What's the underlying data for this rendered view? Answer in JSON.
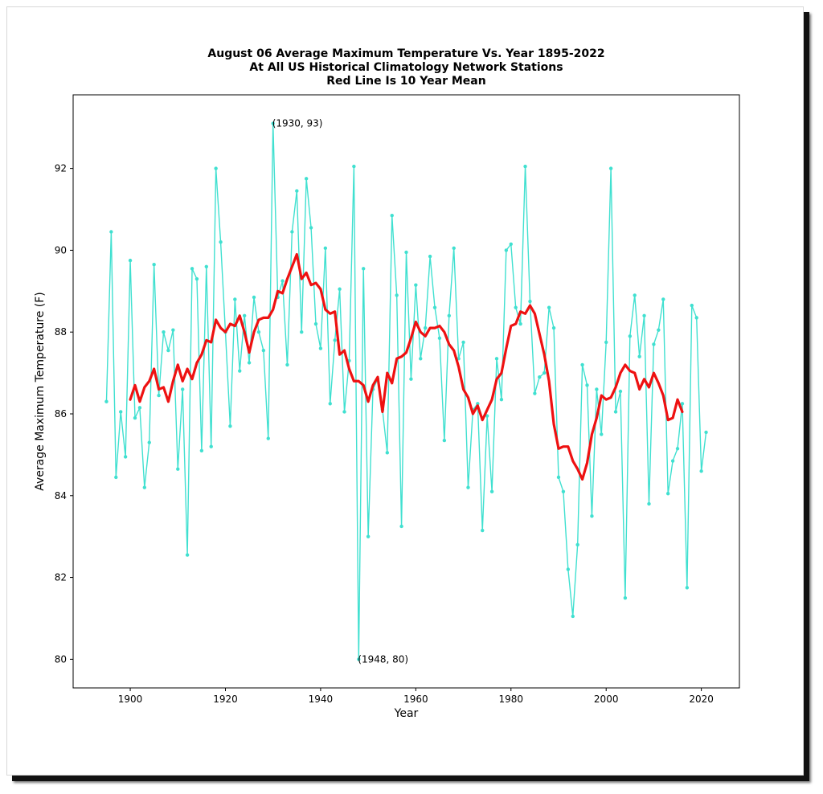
{
  "chart_data": {
    "type": "line",
    "title": [
      "August 06 Average Maximum Temperature Vs. Year 1895-2022",
      "At All US Historical Climatology Network Stations",
      "Red Line Is 10 Year Mean"
    ],
    "xlabel": "Year",
    "ylabel": "Average Maximum Temperature (F)",
    "xlim": [
      1888,
      2028
    ],
    "ylim": [
      79.3,
      93.8
    ],
    "xticks": [
      1900,
      1920,
      1940,
      1960,
      1980,
      2000,
      2020
    ],
    "yticks": [
      80,
      82,
      84,
      86,
      88,
      90,
      92
    ],
    "grid": false,
    "series": [
      {
        "color": "#40E0D0",
        "x": [
          1895,
          1896,
          1897,
          1898,
          1899,
          1900,
          1901,
          1902,
          1903,
          1904,
          1905,
          1906,
          1907,
          1908,
          1909,
          1910,
          1911,
          1912,
          1913,
          1914,
          1915,
          1916,
          1917,
          1918,
          1919,
          1920,
          1921,
          1922,
          1923,
          1924,
          1925,
          1926,
          1927,
          1928,
          1929,
          1930,
          1931,
          1932,
          1933,
          1934,
          1935,
          1936,
          1937,
          1938,
          1939,
          1940,
          1941,
          1942,
          1943,
          1944,
          1945,
          1946,
          1947,
          1948,
          1949,
          1950,
          1951,
          1952,
          1953,
          1954,
          1955,
          1956,
          1957,
          1958,
          1959,
          1960,
          1961,
          1962,
          1963,
          1964,
          1965,
          1966,
          1967,
          1968,
          1969,
          1970,
          1971,
          1972,
          1973,
          1974,
          1975,
          1976,
          1977,
          1978,
          1979,
          1980,
          1981,
          1982,
          1983,
          1984,
          1985,
          1986,
          1987,
          1988,
          1989,
          1990,
          1991,
          1992,
          1993,
          1994,
          1995,
          1996,
          1997,
          1998,
          1999,
          2000,
          2001,
          2002,
          2003,
          2004,
          2005,
          2006,
          2007,
          2008,
          2009,
          2010,
          2011,
          2012,
          2013,
          2014,
          2015,
          2016,
          2017,
          2018,
          2019,
          2020,
          2021
        ],
        "values": [
          86.3,
          90.45,
          84.45,
          86.05,
          84.95,
          89.75,
          85.9,
          86.15,
          84.2,
          85.3,
          89.65,
          86.45,
          88.0,
          87.55,
          88.05,
          84.65,
          86.6,
          82.55,
          89.55,
          89.3,
          85.1,
          89.6,
          85.2,
          92.0,
          90.2,
          88.0,
          85.7,
          88.8,
          87.05,
          88.4,
          87.25,
          88.85,
          88.0,
          87.55,
          85.4,
          93.1,
          88.85,
          89.25,
          87.2,
          90.45,
          91.45,
          88.0,
          91.75,
          90.55,
          88.2,
          87.6,
          90.05,
          86.25,
          87.8,
          89.05,
          86.05,
          87.3,
          92.05,
          80.0,
          89.55,
          83.0,
          86.6,
          86.85,
          86.1,
          85.05,
          90.85,
          88.9,
          83.25,
          89.95,
          86.85,
          89.15,
          87.35,
          88.1,
          89.85,
          88.6,
          87.85,
          85.35,
          88.4,
          90.05,
          87.35,
          87.75,
          84.2,
          86.1,
          86.25,
          83.15,
          85.95,
          84.1,
          87.35,
          86.35,
          90.0,
          90.15,
          88.6,
          88.2,
          92.05,
          88.75,
          86.5,
          86.9,
          87.0,
          88.6,
          88.1,
          84.45,
          84.1,
          82.2,
          81.05,
          82.8,
          87.2,
          86.7,
          83.5,
          86.6,
          85.5,
          87.75,
          92.0,
          86.05,
          86.55,
          81.5,
          87.9,
          88.9,
          87.4,
          88.4,
          83.8,
          87.7,
          88.05,
          88.8,
          84.05,
          84.85,
          85.15,
          86.25,
          81.75,
          88.65,
          88.35,
          84.6,
          85.55
        ]
      },
      {
        "color": "#EE1111",
        "x": [
          1900,
          1901,
          1902,
          1903,
          1904,
          1905,
          1906,
          1907,
          1908,
          1909,
          1910,
          1911,
          1912,
          1913,
          1914,
          1915,
          1916,
          1917,
          1918,
          1919,
          1920,
          1921,
          1922,
          1923,
          1924,
          1925,
          1926,
          1927,
          1928,
          1929,
          1930,
          1931,
          1932,
          1933,
          1934,
          1935,
          1936,
          1937,
          1938,
          1939,
          1940,
          1941,
          1942,
          1943,
          1944,
          1945,
          1946,
          1947,
          1948,
          1949,
          1950,
          1951,
          1952,
          1953,
          1954,
          1955,
          1956,
          1957,
          1958,
          1959,
          1960,
          1961,
          1962,
          1963,
          1964,
          1965,
          1966,
          1967,
          1968,
          1969,
          1970,
          1971,
          1972,
          1973,
          1974,
          1975,
          1976,
          1977,
          1978,
          1979,
          1980,
          1981,
          1982,
          1983,
          1984,
          1985,
          1986,
          1987,
          1988,
          1989,
          1990,
          1991,
          1992,
          1993,
          1994,
          1995,
          1996,
          1997,
          1998,
          1999,
          2000,
          2001,
          2002,
          2003,
          2004,
          2005,
          2006,
          2007,
          2008,
          2009,
          2010,
          2011,
          2012,
          2013,
          2014,
          2015,
          2016
        ],
        "values": [
          86.35,
          86.7,
          86.3,
          86.65,
          86.8,
          87.1,
          86.6,
          86.65,
          86.3,
          86.8,
          87.2,
          86.8,
          87.1,
          86.85,
          87.25,
          87.45,
          87.8,
          87.75,
          88.3,
          88.1,
          88.0,
          88.2,
          88.15,
          88.4,
          88.0,
          87.5,
          88.0,
          88.3,
          88.35,
          88.35,
          88.55,
          89.0,
          88.95,
          89.3,
          89.6,
          89.9,
          89.3,
          89.45,
          89.15,
          89.2,
          89.05,
          88.55,
          88.45,
          88.5,
          87.45,
          87.55,
          87.1,
          86.8,
          86.8,
          86.7,
          86.3,
          86.7,
          86.9,
          86.05,
          87.0,
          86.75,
          87.35,
          87.4,
          87.5,
          87.85,
          88.25,
          88.0,
          87.9,
          88.1,
          88.1,
          88.15,
          88.0,
          87.7,
          87.55,
          87.15,
          86.6,
          86.4,
          86.0,
          86.2,
          85.85,
          86.1,
          86.35,
          86.85,
          87.0,
          87.6,
          88.15,
          88.2,
          88.5,
          88.45,
          88.65,
          88.45,
          87.95,
          87.45,
          86.8,
          85.75,
          85.15,
          85.2,
          85.2,
          84.85,
          84.65,
          84.4,
          84.8,
          85.5,
          85.9,
          86.45,
          86.35,
          86.4,
          86.65,
          87.0,
          87.2,
          87.05,
          87.0,
          86.6,
          86.85,
          86.65,
          87.0,
          86.75,
          86.45,
          85.85,
          85.9,
          86.35,
          86.05
        ]
      }
    ],
    "annotations": [
      {
        "text": "(1930, 93)",
        "x": 1930,
        "y": 93.1
      },
      {
        "text": "(1948, 80)",
        "x": 1948,
        "y": 80.0
      }
    ]
  }
}
